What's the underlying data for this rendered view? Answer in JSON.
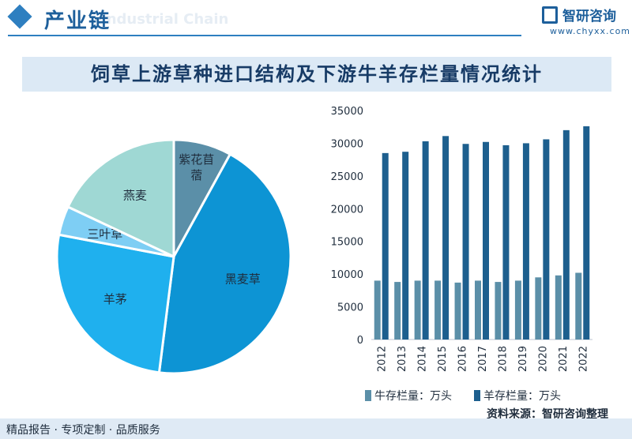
{
  "header": {
    "title": "产业链",
    "watermark_en": "Industrial Chain"
  },
  "logo": {
    "name": "智研咨询",
    "url": "www.chyxx.com"
  },
  "banner": {
    "title": "饲草上游草种进口结构及下游牛羊存栏量情况统计"
  },
  "chart_data": [
    {
      "type": "pie",
      "labels": [
        "紫花苜蓿",
        "黑麦草",
        "羊茅",
        "三叶草",
        "燕麦"
      ],
      "values": [
        8,
        44,
        26,
        4,
        18
      ],
      "colors": [
        "#5b8fa8",
        "#0d94d4",
        "#1fb0ee",
        "#7ecef4",
        "#9fd8d4"
      ]
    },
    {
      "type": "bar",
      "categories": [
        "2012",
        "2013",
        "2014",
        "2015",
        "2016",
        "2017",
        "2018",
        "2019",
        "2020",
        "2021",
        "2022"
      ],
      "series": [
        {
          "name": "牛存栏量：万头",
          "color": "#5b8fa8",
          "values": [
            9000,
            8800,
            9000,
            9000,
            8700,
            9000,
            8800,
            9000,
            9500,
            9800,
            10200
          ]
        },
        {
          "name": "羊存栏量：万头",
          "color": "#1d5f8e",
          "values": [
            28500,
            28700,
            30300,
            31100,
            29900,
            30200,
            29700,
            30000,
            30600,
            32000,
            32600
          ]
        }
      ],
      "ylim": [
        0,
        35000
      ],
      "yticks": [
        0,
        5000,
        10000,
        15000,
        20000,
        25000,
        30000,
        35000
      ],
      "legend": "bottom"
    }
  ],
  "footer": {
    "text": "精品报告 · 专项定制 · 品质服务",
    "source_label": "资料来源：",
    "source_name": "智研咨询整理"
  }
}
